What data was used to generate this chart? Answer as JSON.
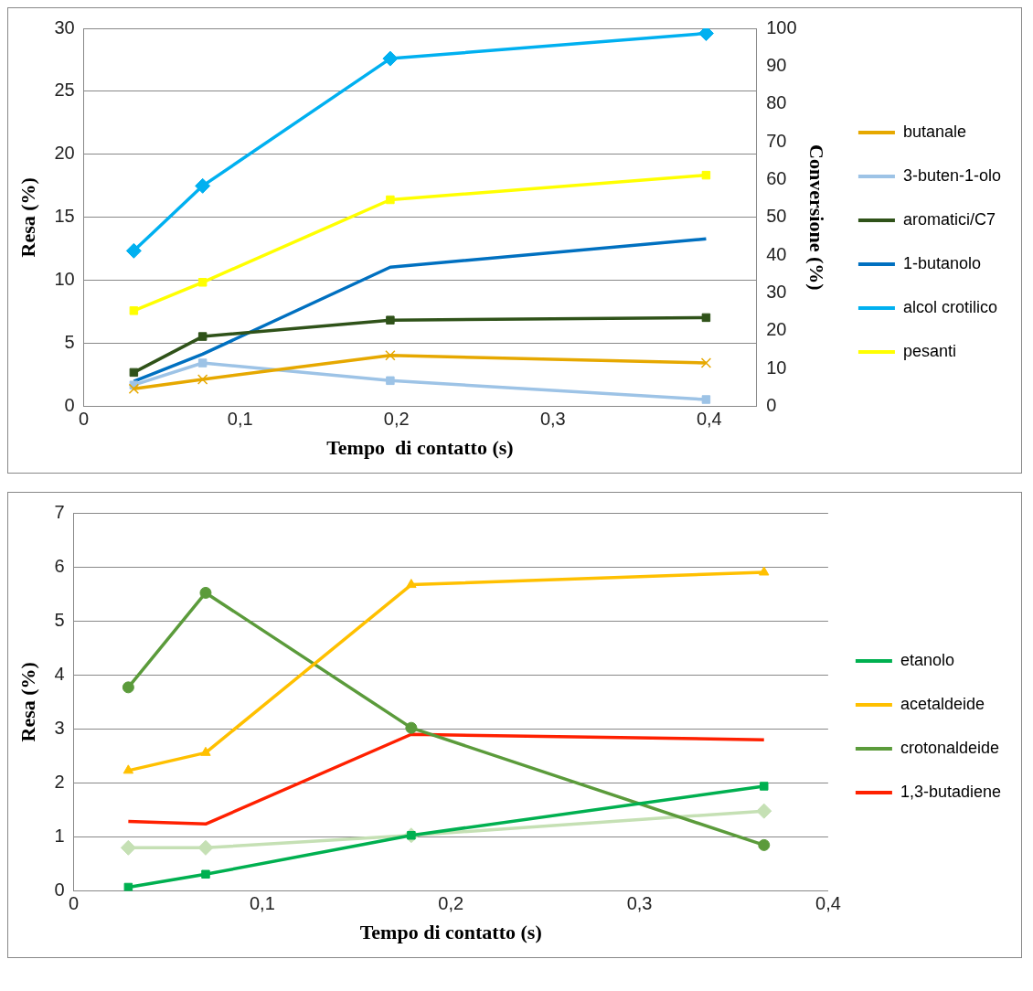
{
  "chart_data": [
    {
      "type": "line",
      "xlabel": "Tempo  di contatto (s)",
      "ylabel": "Resa (%)",
      "y2label": "Conversione (%)",
      "xlim": [
        0,
        0.43
      ],
      "xticks": [
        {
          "value": 0,
          "label": "0"
        },
        {
          "value": 0.1,
          "label": "0,1"
        },
        {
          "value": 0.2,
          "label": "0,2"
        },
        {
          "value": 0.3,
          "label": "0,3"
        },
        {
          "value": 0.4,
          "label": "0,4"
        }
      ],
      "ylim": [
        0,
        30
      ],
      "yticks": [
        0,
        5,
        10,
        15,
        20,
        25,
        30
      ],
      "y2lim": [
        0,
        100
      ],
      "y2ticks": [
        0,
        10,
        20,
        30,
        40,
        50,
        60,
        70,
        80,
        90,
        100
      ],
      "grid": "y",
      "legend": "right",
      "x": [
        0.032,
        0.076,
        0.196,
        0.398
      ],
      "series": [
        {
          "name": "butanale",
          "color": "#e6a800",
          "marker": "cross",
          "values": [
            1.4,
            2.15,
            4.05,
            3.45
          ]
        },
        {
          "name": "3-buten-1-olo",
          "color": "#9dc3e6",
          "marker": "square",
          "values": [
            1.7,
            3.45,
            2.05,
            0.55
          ]
        },
        {
          "name": "aromatici/C7",
          "color": "#2f5219",
          "marker": "square",
          "values": [
            2.7,
            5.55,
            6.85,
            7.05
          ]
        },
        {
          "name": "1-butanolo",
          "color": "#0070c0",
          "marker": "none",
          "values": [
            2.0,
            4.15,
            11.05,
            13.3
          ]
        },
        {
          "name": "alcol crotilico",
          "color": "#00b0f0",
          "marker": "diamond",
          "values": [
            12.35,
            17.5,
            27.6,
            29.6
          ]
        },
        {
          "name": "pesanti",
          "color": "#ffff00",
          "marker": "square",
          "values": [
            7.6,
            9.85,
            16.4,
            18.35
          ]
        }
      ]
    },
    {
      "type": "line",
      "xlabel": "Tempo di contatto (s)",
      "ylabel": "Resa (%)",
      "xlim": [
        0,
        0.4
      ],
      "xticks": [
        {
          "value": 0,
          "label": "0"
        },
        {
          "value": 0.1,
          "label": "0,1"
        },
        {
          "value": 0.2,
          "label": "0,2"
        },
        {
          "value": 0.3,
          "label": "0,3"
        },
        {
          "value": 0.4,
          "label": "0,4"
        }
      ],
      "ylim": [
        0,
        7
      ],
      "yticks": [
        0,
        1,
        2,
        3,
        4,
        5,
        6,
        7
      ],
      "grid": "y",
      "legend": "right",
      "x": [
        0.029,
        0.07,
        0.179,
        0.366
      ],
      "series": [
        {
          "name": "etanolo",
          "color": "#00b050",
          "marker": "square",
          "values": [
            0.07,
            0.31,
            1.03,
            1.94
          ]
        },
        {
          "name": "acetaldeide",
          "color": "#ffc000",
          "marker": "triangle",
          "values": [
            2.23,
            2.56,
            5.67,
            5.9
          ]
        },
        {
          "name": "crotonaldeide",
          "color": "#5b9b3b",
          "marker": "circle",
          "values": [
            3.77,
            5.52,
            3.02,
            0.85
          ]
        },
        {
          "name": "1,3-butadiene",
          "color": "#ff2000",
          "marker": "none",
          "values": [
            1.29,
            1.24,
            2.9,
            2.8
          ]
        },
        {
          "color": "#c5e0b4",
          "marker": "diamond",
          "values": [
            0.8,
            0.8,
            1.03,
            1.48
          ]
        }
      ]
    }
  ]
}
